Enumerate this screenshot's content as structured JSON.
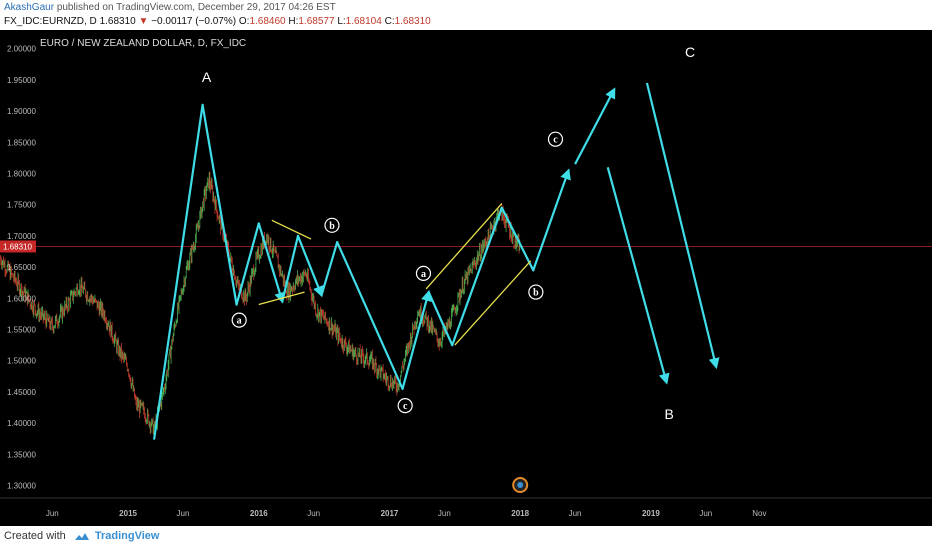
{
  "header": {
    "user": "AkashGaur",
    "published": "published on TradingView.com, December 29, 2017 04:26 EST",
    "symbol": "FX_IDC:EURNZD, D",
    "last": "1.68310",
    "change_arrow": "▼",
    "change": "−0.00117 (−0.07%)",
    "o_label": "O:",
    "o_val": "1.68460",
    "h_label": "H:",
    "h_val": "1.68577",
    "l_label": "L:",
    "l_val": "1.68104",
    "c_label": "C:",
    "c_val": "1.68310"
  },
  "footer": {
    "created_with": "Created with",
    "brand": "TradingView"
  },
  "chart_data": {
    "type": "line",
    "title": "EURO / NEW ZEALAND DOLLAR, D, FX_IDC",
    "ylim": [
      1.28,
      2.03
    ],
    "y_ticks": [
      "2.00000",
      "1.95000",
      "1.90000",
      "1.85000",
      "1.80000",
      "1.75000",
      "1.70000",
      "1.65000",
      "1.60000",
      "1.55000",
      "1.50000",
      "1.45000",
      "1.40000",
      "1.35000",
      "1.30000"
    ],
    "x_ticks": [
      {
        "label": "Jun",
        "t": 2014.42
      },
      {
        "label": "2015",
        "t": 2015.0
      },
      {
        "label": "Jun",
        "t": 2015.42
      },
      {
        "label": "2016",
        "t": 2016.0
      },
      {
        "label": "Jun",
        "t": 2016.42
      },
      {
        "label": "2017",
        "t": 2017.0
      },
      {
        "label": "Jun",
        "t": 2017.42
      },
      {
        "label": "2018",
        "t": 2018.0
      },
      {
        "label": "Jun",
        "t": 2018.42
      },
      {
        "label": "2019",
        "t": 2019.0
      },
      {
        "label": "Jun",
        "t": 2019.42
      },
      {
        "label": "Nov",
        "t": 2019.83
      }
    ],
    "xlim": [
      2014.02,
      2020.6
    ],
    "price_line": 1.6831,
    "price_label": "1.68310",
    "price_path": [
      [
        2014.02,
        1.665
      ],
      [
        2014.1,
        1.64
      ],
      [
        2014.2,
        1.61
      ],
      [
        2014.3,
        1.58
      ],
      [
        2014.42,
        1.555
      ],
      [
        2014.52,
        1.585
      ],
      [
        2014.62,
        1.62
      ],
      [
        2014.72,
        1.6
      ],
      [
        2014.82,
        1.575
      ],
      [
        2014.92,
        1.52
      ],
      [
        2015.0,
        1.49
      ],
      [
        2015.06,
        1.43
      ],
      [
        2015.12,
        1.42
      ],
      [
        2015.2,
        1.39
      ],
      [
        2015.28,
        1.46
      ],
      [
        2015.36,
        1.56
      ],
      [
        2015.44,
        1.64
      ],
      [
        2015.52,
        1.7
      ],
      [
        2015.58,
        1.76
      ],
      [
        2015.62,
        1.79
      ],
      [
        2015.68,
        1.74
      ],
      [
        2015.76,
        1.68
      ],
      [
        2015.84,
        1.62
      ],
      [
        2015.9,
        1.6
      ],
      [
        2015.98,
        1.66
      ],
      [
        2016.06,
        1.7
      ],
      [
        2016.14,
        1.66
      ],
      [
        2016.22,
        1.61
      ],
      [
        2016.3,
        1.63
      ],
      [
        2016.36,
        1.64
      ],
      [
        2016.44,
        1.58
      ],
      [
        2016.54,
        1.56
      ],
      [
        2016.64,
        1.53
      ],
      [
        2016.74,
        1.51
      ],
      [
        2016.86,
        1.5
      ],
      [
        2016.98,
        1.47
      ],
      [
        2017.06,
        1.46
      ],
      [
        2017.14,
        1.52
      ],
      [
        2017.22,
        1.58
      ],
      [
        2017.3,
        1.56
      ],
      [
        2017.38,
        1.53
      ],
      [
        2017.46,
        1.56
      ],
      [
        2017.56,
        1.62
      ],
      [
        2017.66,
        1.66
      ],
      [
        2017.76,
        1.7
      ],
      [
        2017.84,
        1.74
      ],
      [
        2017.9,
        1.72
      ],
      [
        2017.96,
        1.69
      ],
      [
        2018.0,
        1.683
      ]
    ],
    "wave_path": [
      [
        2015.2,
        1.375
      ],
      [
        2015.57,
        1.91
      ],
      [
        2015.83,
        1.59
      ],
      [
        2016.0,
        1.72
      ],
      [
        2016.18,
        1.595
      ],
      [
        2016.3,
        1.7
      ],
      [
        2016.48,
        1.605
      ],
      [
        2016.6,
        1.69
      ],
      [
        2017.1,
        1.455
      ],
      [
        2017.3,
        1.61
      ],
      [
        2017.48,
        1.525
      ],
      [
        2017.86,
        1.745
      ],
      [
        2018.1,
        1.645
      ],
      [
        2018.37,
        1.805
      ]
    ],
    "projections": [
      {
        "from": [
          2018.42,
          1.815
        ],
        "to": [
          2018.72,
          1.935
        ]
      },
      {
        "from": [
          2018.67,
          1.81
        ],
        "to": [
          2019.12,
          1.465
        ]
      },
      {
        "from": [
          2018.97,
          1.945
        ],
        "to": [
          2019.5,
          1.49
        ]
      }
    ],
    "channels": [
      {
        "from": [
          2016.1,
          1.725
        ],
        "to": [
          2016.4,
          1.695
        ]
      },
      {
        "from": [
          2016.0,
          1.59
        ],
        "to": [
          2016.35,
          1.61
        ]
      },
      {
        "from": [
          2017.28,
          1.615
        ],
        "to": [
          2017.86,
          1.752
        ]
      },
      {
        "from": [
          2017.5,
          1.525
        ],
        "to": [
          2018.08,
          1.66
        ]
      }
    ],
    "annotations": [
      {
        "text": "A",
        "x": 2015.6,
        "y": 1.955,
        "style": "plain"
      },
      {
        "text": "a",
        "x": 2015.85,
        "y": 1.565,
        "style": "circle"
      },
      {
        "text": "b",
        "x": 2016.56,
        "y": 1.717,
        "style": "circle"
      },
      {
        "text": "a",
        "x": 2017.26,
        "y": 1.64,
        "style": "circle"
      },
      {
        "text": "c",
        "x": 2017.12,
        "y": 1.428,
        "style": "circle"
      },
      {
        "text": "b",
        "x": 2018.12,
        "y": 1.61,
        "style": "circle"
      },
      {
        "text": "c",
        "x": 2018.27,
        "y": 1.855,
        "style": "circle"
      },
      {
        "text": "C",
        "x": 2019.3,
        "y": 1.995,
        "style": "plain"
      },
      {
        "text": "B",
        "x": 2019.14,
        "y": 1.415,
        "style": "plain"
      }
    ],
    "colors": {
      "background": "#000000",
      "wave": "#3fdde8",
      "channel": "#e8e04a",
      "price_up": "#4caf50",
      "price_down": "#c0392b",
      "price_line": "#8b1a1a",
      "price_label_bg": "#c62828",
      "axis_text": "#bbbbbb"
    }
  }
}
